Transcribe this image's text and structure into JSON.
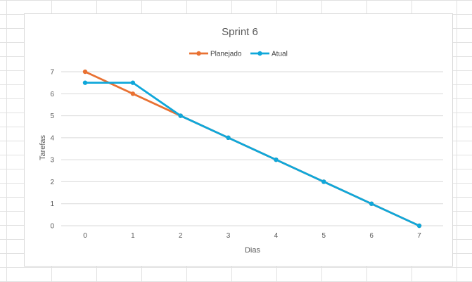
{
  "chart_data": {
    "type": "line",
    "title": "Sprint 6",
    "xlabel": "Dias",
    "ylabel": "Tarefas",
    "x": [
      0,
      1,
      2,
      3,
      4,
      5,
      6,
      7
    ],
    "xlim": [
      0,
      7
    ],
    "ylim": [
      0,
      7
    ],
    "yticks": [
      0,
      1,
      2,
      3,
      4,
      5,
      6,
      7
    ],
    "grid": true,
    "legend_position": "top",
    "series": [
      {
        "name": "Planejado",
        "color": "#E97132",
        "values": [
          7,
          6,
          5,
          4,
          3,
          2,
          1,
          0
        ]
      },
      {
        "name": "Atual",
        "color": "#0FA7DA",
        "values": [
          6.5,
          6.5,
          5,
          4,
          3,
          2,
          1,
          0
        ]
      }
    ]
  }
}
